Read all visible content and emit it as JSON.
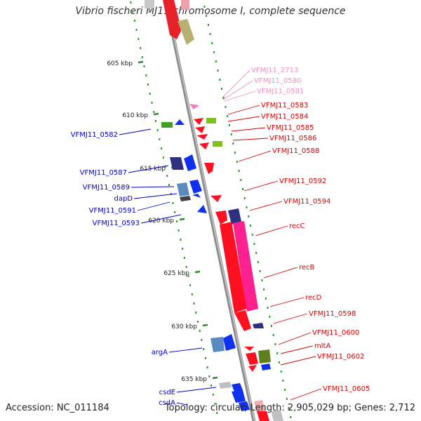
{
  "title": "Vibrio fischeri MJ11 chromosome I, complete sequence",
  "accession": "Accession: NC_011184",
  "summary": "Topology: circular; Length: 2,905,029 bp; Genes: 2,712",
  "colors": {
    "backbone": "#8c8c8c",
    "tick": "#2e8b2e",
    "label_red": "#d40000",
    "label_blue": "#0000c0",
    "label_pink": "#f090c0"
  },
  "kbp_ticks": [
    {
      "kbp": 605,
      "label": "605 kbp"
    },
    {
      "kbp": 610,
      "label": "610 kbp"
    },
    {
      "kbp": 615,
      "label": "615 kbp"
    },
    {
      "kbp": 620,
      "label": "620 kbp"
    },
    {
      "kbp": 625,
      "label": "625 kbp"
    },
    {
      "kbp": 630,
      "label": "630 kbp"
    },
    {
      "kbp": 635,
      "label": "635 kbp"
    }
  ],
  "gene_labels_right": [
    {
      "text": "VFMJ11_2713",
      "color": "pink"
    },
    {
      "text": "VFMJ11_0580",
      "color": "pink"
    },
    {
      "text": "VFMJ11_0581",
      "color": "pink"
    },
    {
      "text": "VFMJ11_0583",
      "color": "red"
    },
    {
      "text": "VFMJ11_0584",
      "color": "red"
    },
    {
      "text": "VFMJ11_0585",
      "color": "red"
    },
    {
      "text": "VFMJ11_0586",
      "color": "red"
    },
    {
      "text": "VFMJ11_0588",
      "color": "red"
    },
    {
      "text": "VFMJ11_0592",
      "color": "red"
    },
    {
      "text": "VFMJ11_0594",
      "color": "red"
    },
    {
      "text": "recC",
      "color": "red"
    },
    {
      "text": "recB",
      "color": "red"
    },
    {
      "text": "recD",
      "color": "red"
    },
    {
      "text": "VFMJ11_0598",
      "color": "red"
    },
    {
      "text": "VFMJ11_0600",
      "color": "red"
    },
    {
      "text": "mltA",
      "color": "red"
    },
    {
      "text": "VFMJ11_0602",
      "color": "red"
    },
    {
      "text": "VFMJ11_0605",
      "color": "red"
    }
  ],
  "gene_labels_left": [
    {
      "text": "VFMJ11_0582",
      "color": "blue"
    },
    {
      "text": "VFMJ11_0587",
      "color": "blue"
    },
    {
      "text": "VFMJ11_0589",
      "color": "blue"
    },
    {
      "text": "dapD",
      "color": "blue"
    },
    {
      "text": "VFMJ11_0591",
      "color": "blue"
    },
    {
      "text": "VFMJ11_0593",
      "color": "blue"
    },
    {
      "text": "argA",
      "color": "blue"
    },
    {
      "text": "csdE",
      "color": "blue"
    },
    {
      "text": "csdA",
      "color": "blue"
    }
  ]
}
